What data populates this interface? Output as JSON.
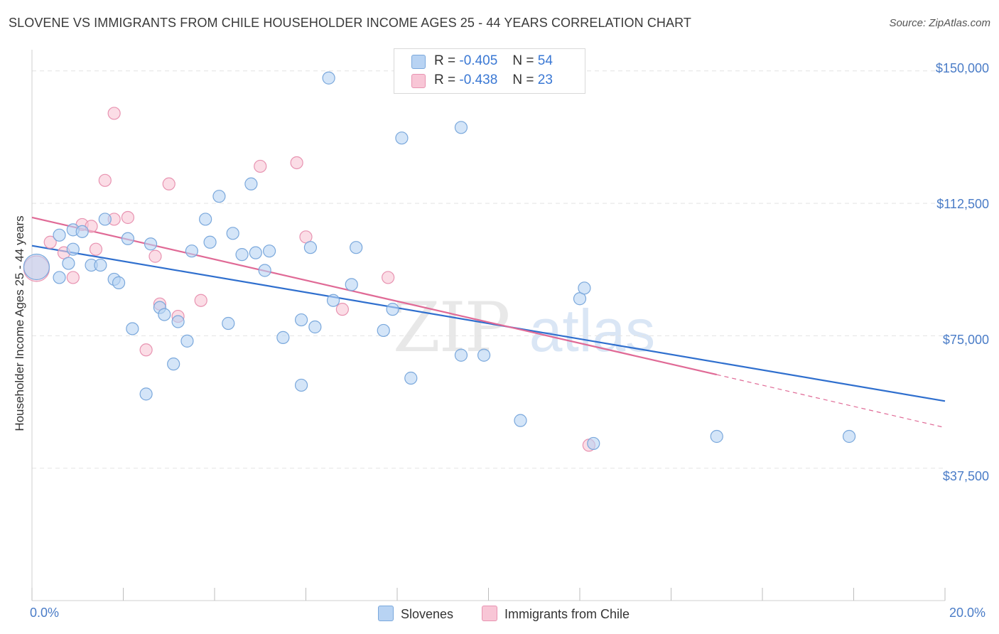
{
  "title": "SLOVENE VS IMMIGRANTS FROM CHILE HOUSEHOLDER INCOME AGES 25 - 44 YEARS CORRELATION CHART",
  "source": "Source: ZipAtlas.com",
  "watermark": {
    "zip": "ZIP",
    "atlas": "atlas"
  },
  "colors": {
    "slovene_fill": "#b8d3f3",
    "slovene_stroke": "#7aa8dc",
    "slovene_line": "#2f6fce",
    "chile_fill": "#f8c6d6",
    "chile_stroke": "#e893b1",
    "chile_line": "#e06a96",
    "grid": "#e3e3e3",
    "axis_text": "#4a7cc7"
  },
  "legend": {
    "rows": [
      {
        "r_label": "R =",
        "r_value": "-0.405",
        "n_label": "N =",
        "n_value": "54"
      },
      {
        "r_label": "R =",
        "r_value": "-0.438",
        "n_label": "N =",
        "n_value": "23"
      }
    ]
  },
  "chart_data": {
    "type": "scatter",
    "title": "SLOVENE VS IMMIGRANTS FROM CHILE HOUSEHOLDER INCOME AGES 25 - 44 YEARS CORRELATION CHART",
    "xlabel": "",
    "ylabel": "Householder Income Ages 25 - 44 years",
    "xlim": [
      0,
      20
    ],
    "ylim": [
      0,
      156000
    ],
    "x_tick_labels": [
      "0.0%",
      "20.0%"
    ],
    "y_ticks": [
      37500,
      75000,
      112500,
      150000
    ],
    "y_tick_labels": [
      "$37,500",
      "$75,000",
      "$112,500",
      "$150,000"
    ],
    "grid": true,
    "legend_position": "top-center",
    "series": [
      {
        "name": "Slovenes",
        "points": [
          [
            0.1,
            94500
          ],
          [
            0.6,
            103500
          ],
          [
            0.9,
            105000
          ],
          [
            0.6,
            91500
          ],
          [
            0.8,
            95500
          ],
          [
            0.9,
            99500
          ],
          [
            1.1,
            104500
          ],
          [
            1.3,
            95000
          ],
          [
            1.5,
            95000
          ],
          [
            1.6,
            108000
          ],
          [
            1.8,
            91000
          ],
          [
            1.9,
            90000
          ],
          [
            2.1,
            102500
          ],
          [
            2.2,
            77000
          ],
          [
            2.5,
            58500
          ],
          [
            2.6,
            101000
          ],
          [
            2.8,
            83000
          ],
          [
            2.9,
            81000
          ],
          [
            3.1,
            67000
          ],
          [
            3.2,
            79000
          ],
          [
            3.4,
            73500
          ],
          [
            3.5,
            99000
          ],
          [
            3.8,
            108000
          ],
          [
            3.9,
            101500
          ],
          [
            4.1,
            114500
          ],
          [
            4.3,
            78500
          ],
          [
            4.4,
            104000
          ],
          [
            4.6,
            98000
          ],
          [
            4.8,
            118000
          ],
          [
            4.9,
            98500
          ],
          [
            5.1,
            93500
          ],
          [
            5.2,
            99000
          ],
          [
            5.5,
            74500
          ],
          [
            5.9,
            61000
          ],
          [
            5.9,
            79500
          ],
          [
            6.1,
            100000
          ],
          [
            6.2,
            77500
          ],
          [
            6.5,
            148000
          ],
          [
            6.6,
            85000
          ],
          [
            7.0,
            89500
          ],
          [
            7.1,
            100000
          ],
          [
            7.7,
            76500
          ],
          [
            7.9,
            82500
          ],
          [
            8.1,
            131000
          ],
          [
            8.3,
            63000
          ],
          [
            9.4,
            69500
          ],
          [
            9.4,
            134000
          ],
          [
            9.9,
            69500
          ],
          [
            10.7,
            51000
          ],
          [
            12.0,
            85500
          ],
          [
            12.1,
            88500
          ],
          [
            12.3,
            44500
          ],
          [
            15.0,
            46500
          ],
          [
            17.9,
            46500
          ]
        ]
      },
      {
        "name": "Immigrants from Chile",
        "points": [
          [
            0.1,
            94000
          ],
          [
            0.4,
            101500
          ],
          [
            0.7,
            98500
          ],
          [
            0.9,
            91500
          ],
          [
            1.1,
            106500
          ],
          [
            1.3,
            106000
          ],
          [
            1.4,
            99500
          ],
          [
            1.6,
            119000
          ],
          [
            1.8,
            138000
          ],
          [
            1.8,
            108000
          ],
          [
            2.1,
            108500
          ],
          [
            2.5,
            71000
          ],
          [
            2.7,
            97500
          ],
          [
            2.8,
            84000
          ],
          [
            3.0,
            118000
          ],
          [
            3.2,
            80500
          ],
          [
            3.7,
            85000
          ],
          [
            5.0,
            123000
          ],
          [
            5.8,
            124000
          ],
          [
            6.0,
            103000
          ],
          [
            6.8,
            82500
          ],
          [
            7.8,
            91500
          ],
          [
            12.2,
            44000
          ]
        ]
      }
    ],
    "trend_lines": [
      {
        "name": "Slovenes",
        "x": [
          0,
          20
        ],
        "y": [
          100500,
          56500
        ]
      },
      {
        "name": "Immigrants from Chile",
        "x": [
          0,
          15.0
        ],
        "y": [
          108500,
          64000
        ],
        "dashed_x": [
          15.0,
          20
        ],
        "dashed_y": [
          64000,
          49000
        ]
      }
    ]
  },
  "bottom_legend": [
    {
      "label": "Slovenes"
    },
    {
      "label": "Immigrants from Chile"
    }
  ]
}
